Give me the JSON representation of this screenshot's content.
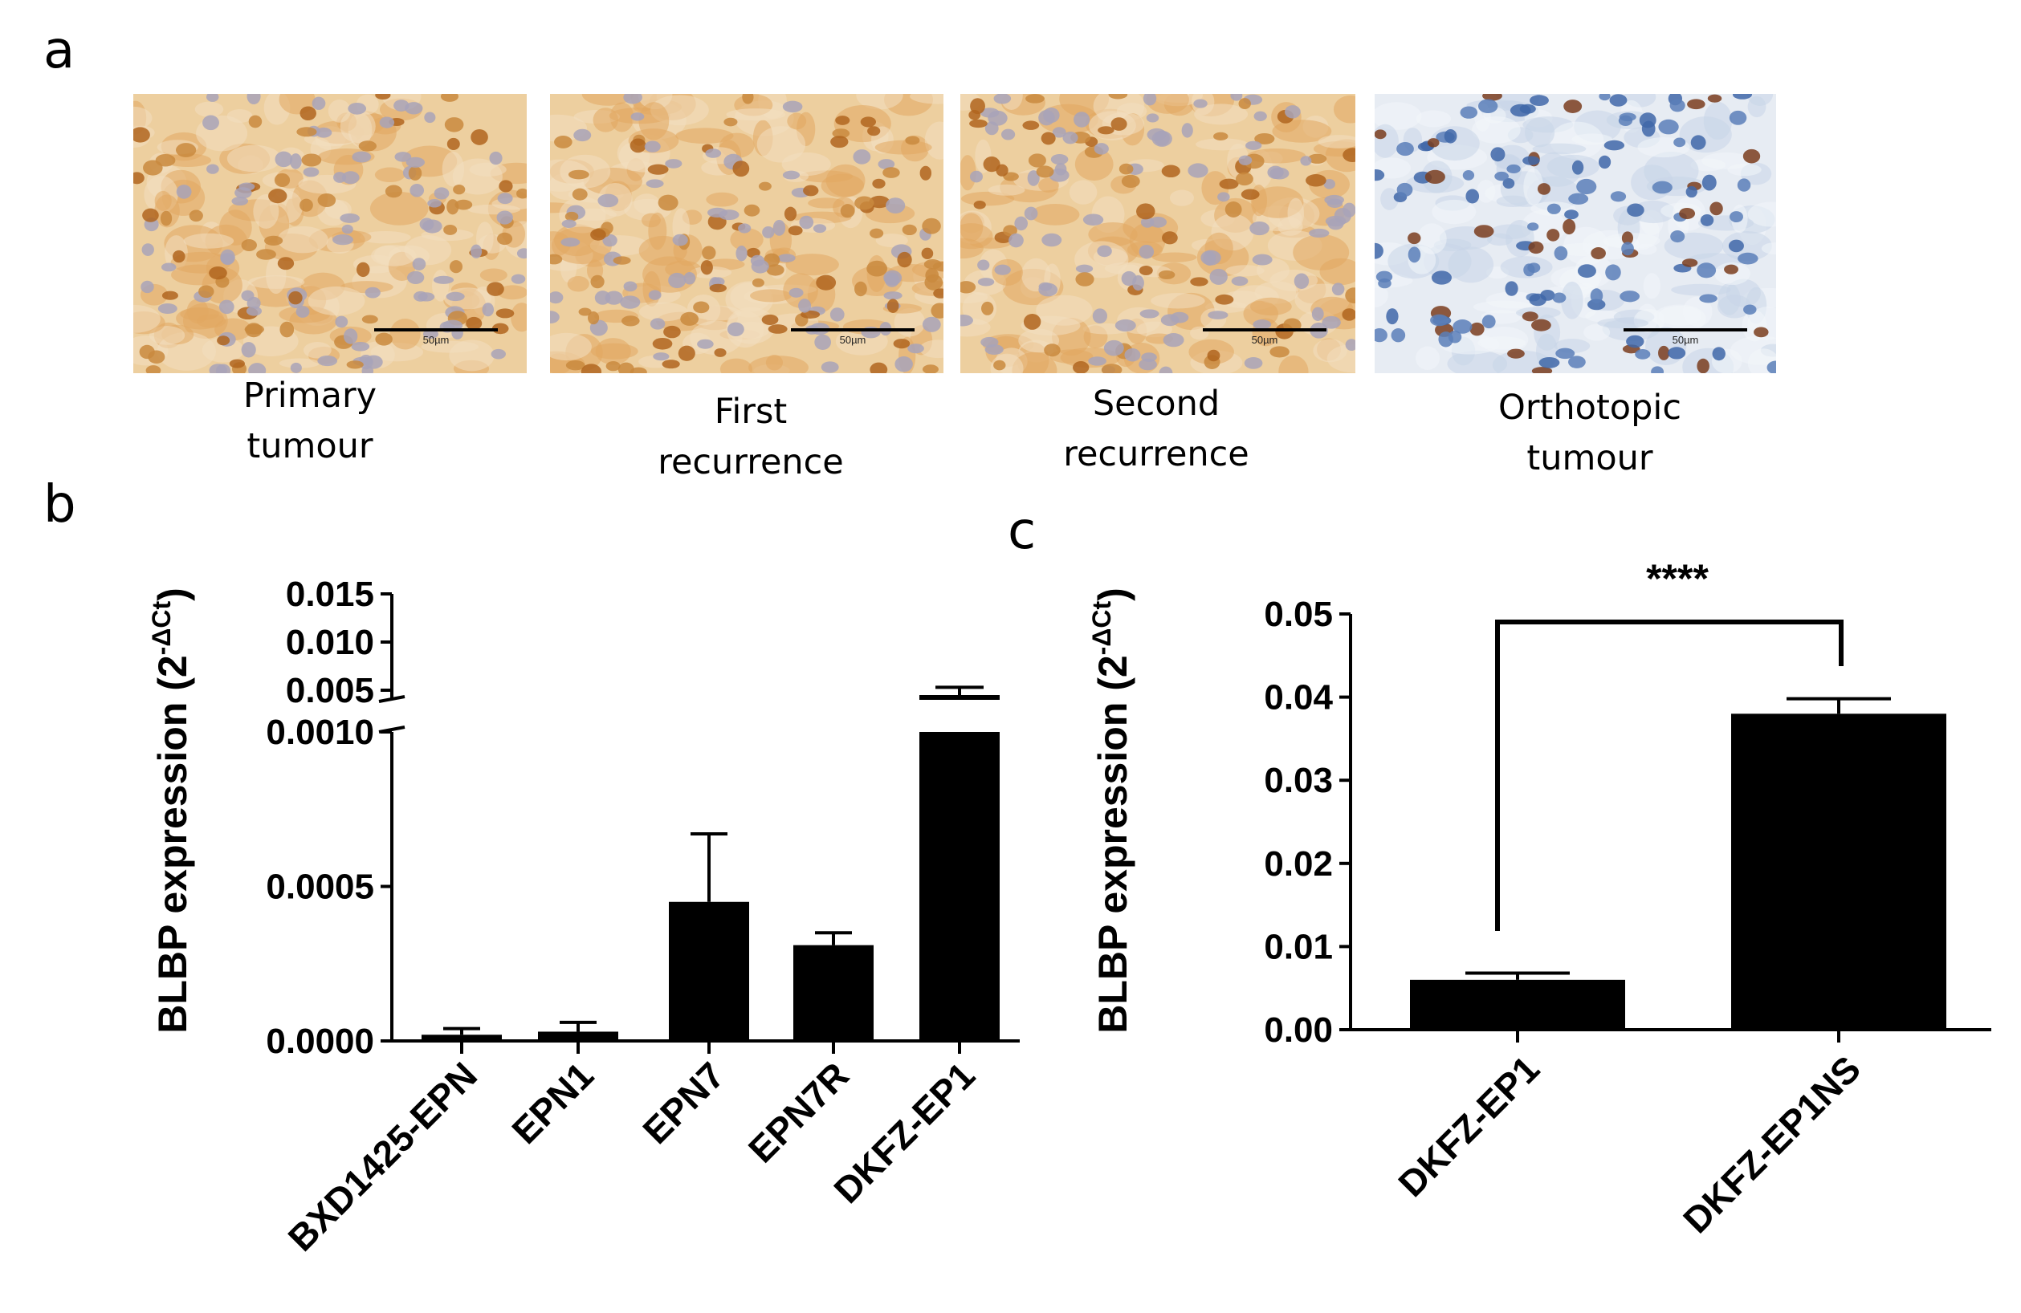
{
  "panels": {
    "a": "a",
    "b": "b",
    "c": "c"
  },
  "images": [
    {
      "caption": "Primary\ntumour",
      "scale_label": "50µm",
      "stain": "dab-brown"
    },
    {
      "caption": "First\nrecurrence",
      "scale_label": "50µm",
      "stain": "dab-brown"
    },
    {
      "caption": "Second\nrecurrence",
      "scale_label": "50µm",
      "stain": "dab-brown"
    },
    {
      "caption": "Orthotopic\ntumour",
      "scale_label": "50µm",
      "stain": "hematoxylin-blue"
    }
  ],
  "chart_data": [
    {
      "type": "bar",
      "panel": "b",
      "categories": [
        "BXD1425-EPN",
        "EPN1",
        "EPN7",
        "EPN7R",
        "DKFZ-EP1"
      ],
      "values": [
        2e-05,
        3e-05,
        0.00045,
        0.00031,
        0.0045
      ],
      "errors": [
        2e-05,
        3e-05,
        0.00022,
        4e-05,
        0.0008
      ],
      "ylabel": "BLBP expression (2",
      "ylabel_sup": "-ΔCt",
      "ylabel_close": ")",
      "axis_break": true,
      "lower_segment": {
        "ylim": [
          0,
          0.001
        ],
        "ticks": [
          "0.0000",
          "0.0005",
          "0.0010"
        ],
        "tick_values": [
          0,
          0.0005,
          0.001
        ]
      },
      "upper_segment": {
        "ylim": [
          0.004,
          0.015
        ],
        "ticks": [
          "0.005",
          "0.010",
          "0.015"
        ],
        "tick_values": [
          0.005,
          0.01,
          0.015
        ]
      },
      "bar_color": "#000000"
    },
    {
      "type": "bar",
      "panel": "c",
      "categories": [
        "DKFZ-EP1",
        "DKFZ-EP1NS"
      ],
      "values": [
        0.006,
        0.038
      ],
      "errors": [
        0.0008,
        0.0018
      ],
      "ylabel": "BLBP expression (2",
      "ylabel_sup": "-ΔCt",
      "ylabel_close": ")",
      "ylim": [
        0,
        0.05
      ],
      "ticks": [
        "0.00",
        "0.01",
        "0.02",
        "0.03",
        "0.04",
        "0.05"
      ],
      "tick_values": [
        0,
        0.01,
        0.02,
        0.03,
        0.04,
        0.05
      ],
      "significance": "****",
      "bar_color": "#000000"
    }
  ]
}
